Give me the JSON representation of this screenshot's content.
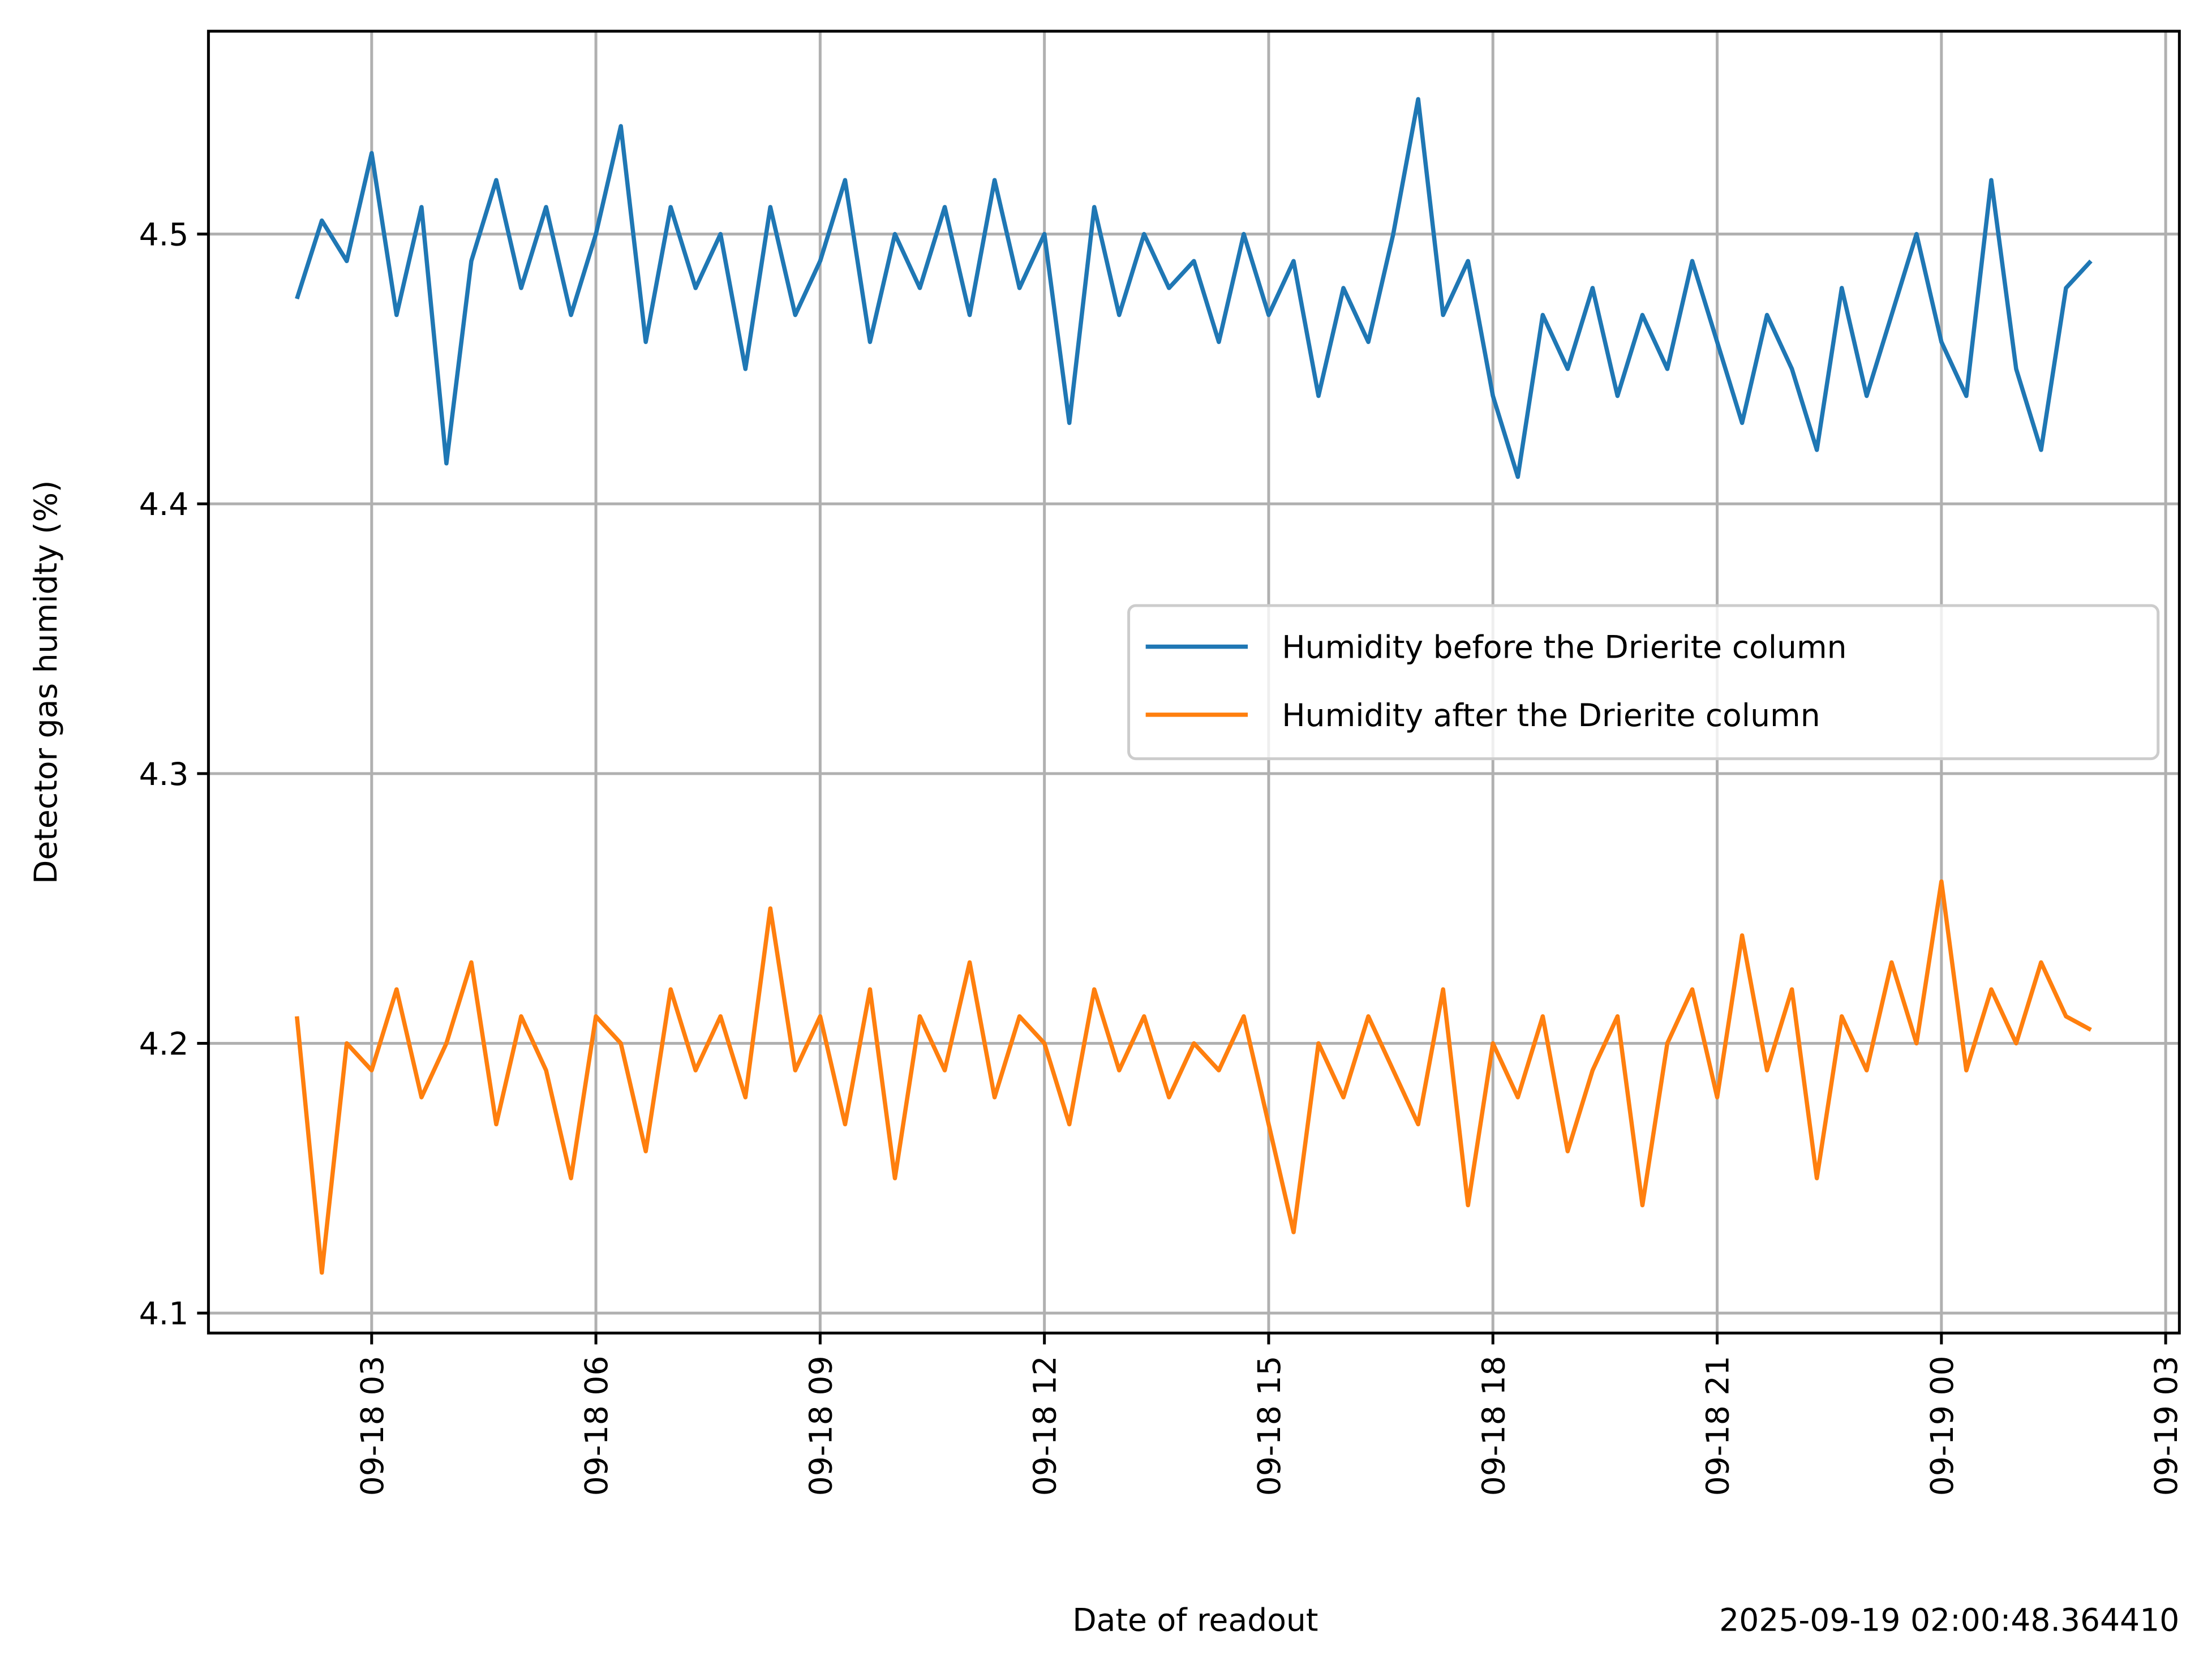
{
  "chart_data": {
    "type": "line",
    "ylabel": "Detector gas humidty (%)",
    "xlabel": "Date of readout",
    "annotation": "2025-09-19 02:00:48.364410",
    "x": [
      "09-18 02:00",
      "09-18 02:20",
      "09-18 02:40",
      "09-18 03:00",
      "09-18 03:20",
      "09-18 03:40",
      "09-18 04:00",
      "09-18 04:20",
      "09-18 04:40",
      "09-18 05:00",
      "09-18 05:20",
      "09-18 05:40",
      "09-18 06:00",
      "09-18 06:20",
      "09-18 06:40",
      "09-18 07:00",
      "09-18 07:20",
      "09-18 07:40",
      "09-18 08:00",
      "09-18 08:20",
      "09-18 08:40",
      "09-18 09:00",
      "09-18 09:20",
      "09-18 09:40",
      "09-18 10:00",
      "09-18 10:20",
      "09-18 10:40",
      "09-18 11:00",
      "09-18 11:20",
      "09-18 11:40",
      "09-18 12:00",
      "09-18 12:20",
      "09-18 12:40",
      "09-18 13:00",
      "09-18 13:20",
      "09-18 13:40",
      "09-18 14:00",
      "09-18 14:20",
      "09-18 14:40",
      "09-18 15:00",
      "09-18 15:20",
      "09-18 15:40",
      "09-18 16:00",
      "09-18 16:20",
      "09-18 16:40",
      "09-18 17:00",
      "09-18 17:20",
      "09-18 17:40",
      "09-18 18:00",
      "09-18 18:20",
      "09-18 18:40",
      "09-18 19:00",
      "09-18 19:20",
      "09-18 19:40",
      "09-18 20:00",
      "09-18 20:20",
      "09-18 20:40",
      "09-18 21:00",
      "09-18 21:20",
      "09-18 21:40",
      "09-18 22:00",
      "09-18 22:20",
      "09-18 22:40",
      "09-18 23:00",
      "09-18 23:20",
      "09-18 23:40",
      "09-19 00:00",
      "09-19 00:20",
      "09-19 00:40",
      "09-19 01:00",
      "09-19 01:20",
      "09-19 01:40",
      "09-19 02:00"
    ],
    "series": [
      {
        "name": "Humidity before the Drierite column",
        "color": "#1f77b4",
        "values": [
          4.476,
          4.505,
          4.49,
          4.53,
          4.47,
          4.51,
          4.415,
          4.49,
          4.52,
          4.48,
          4.51,
          4.47,
          4.5,
          4.54,
          4.46,
          4.51,
          4.48,
          4.5,
          4.45,
          4.51,
          4.47,
          4.49,
          4.52,
          4.46,
          4.5,
          4.48,
          4.51,
          4.47,
          4.52,
          4.48,
          4.5,
          4.43,
          4.51,
          4.47,
          4.5,
          4.48,
          4.49,
          4.46,
          4.5,
          4.47,
          4.49,
          4.44,
          4.48,
          4.46,
          4.5,
          4.55,
          4.47,
          4.49,
          4.44,
          4.41,
          4.47,
          4.45,
          4.48,
          4.44,
          4.47,
          4.45,
          4.49,
          4.46,
          4.43,
          4.47,
          4.45,
          4.42,
          4.48,
          4.44,
          4.47,
          4.5,
          4.46,
          4.44,
          4.52,
          4.45,
          4.42,
          4.48,
          4.49
        ]
      },
      {
        "name": "Humidity after the Drierite column",
        "color": "#ff7f0e",
        "values": [
          4.21,
          4.115,
          4.2,
          4.19,
          4.22,
          4.18,
          4.2,
          4.23,
          4.17,
          4.21,
          4.19,
          4.15,
          4.21,
          4.2,
          4.16,
          4.22,
          4.19,
          4.21,
          4.18,
          4.25,
          4.19,
          4.21,
          4.17,
          4.22,
          4.15,
          4.21,
          4.19,
          4.23,
          4.18,
          4.21,
          4.2,
          4.17,
          4.22,
          4.19,
          4.21,
          4.18,
          4.2,
          4.19,
          4.21,
          4.17,
          4.13,
          4.2,
          4.18,
          4.21,
          4.19,
          4.17,
          4.22,
          4.14,
          4.2,
          4.18,
          4.21,
          4.16,
          4.19,
          4.21,
          4.14,
          4.2,
          4.22,
          4.18,
          4.24,
          4.19,
          4.22,
          4.15,
          4.21,
          4.19,
          4.23,
          4.2,
          4.26,
          4.19,
          4.22,
          4.2,
          4.23,
          4.21,
          4.205
        ]
      }
    ],
    "xlim": [
      "09-18 00:49",
      "09-19 03:11"
    ],
    "xticks": [
      {
        "value": "09-18 03:00",
        "label": "09-18 03"
      },
      {
        "value": "09-18 06:00",
        "label": "09-18 06"
      },
      {
        "value": "09-18 09:00",
        "label": "09-18 09"
      },
      {
        "value": "09-18 12:00",
        "label": "09-18 12"
      },
      {
        "value": "09-18 15:00",
        "label": "09-18 15"
      },
      {
        "value": "09-18 18:00",
        "label": "09-18 18"
      },
      {
        "value": "09-18 21:00",
        "label": "09-18 21"
      },
      {
        "value": "09-19 00:00",
        "label": "09-19 00"
      },
      {
        "value": "09-19 03:00",
        "label": "09-19 03"
      }
    ],
    "ylim": [
      4.0926,
      4.5752
    ],
    "yticks": [
      4.1,
      4.2,
      4.3,
      4.4,
      4.5
    ],
    "grid": true,
    "legend": "center right"
  }
}
